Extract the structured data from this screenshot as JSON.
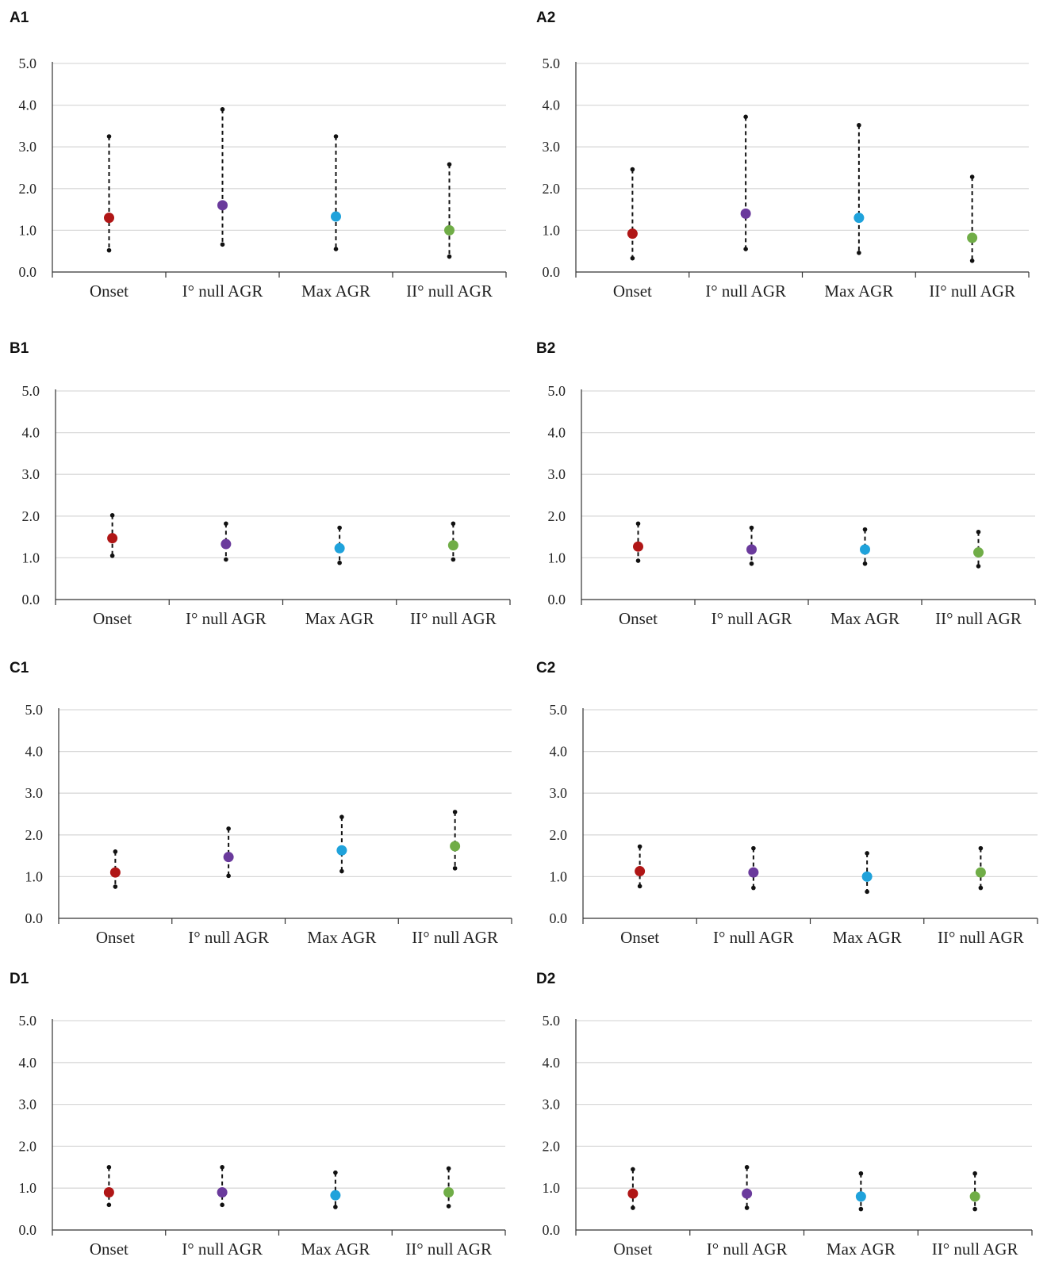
{
  "chart_data": [
    {
      "type": "scatter",
      "panel": "A1",
      "title": "",
      "xlabel": "",
      "ylabel": "",
      "ylim": [
        0,
        5
      ],
      "yticks": [
        "0.0",
        "1.0",
        "2.0",
        "3.0",
        "4.0",
        "5.0"
      ],
      "categories": [
        "Onset",
        "I° null AGR",
        "Max AGR",
        "II° null AGR"
      ],
      "colors": [
        "#b01616",
        "#6a3a9c",
        "#1fa2db",
        "#70ad47"
      ],
      "values": [
        1.3,
        1.6,
        1.33,
        1.0
      ],
      "lower": [
        0.52,
        0.66,
        0.55,
        0.37
      ],
      "upper": [
        3.25,
        3.9,
        3.25,
        2.58
      ]
    },
    {
      "type": "scatter",
      "panel": "A2",
      "title": "",
      "xlabel": "",
      "ylabel": "",
      "ylim": [
        0,
        5
      ],
      "yticks": [
        "0.0",
        "1.0",
        "2.0",
        "3.0",
        "4.0",
        "5.0"
      ],
      "categories": [
        "Onset",
        "I° null AGR",
        "Max AGR",
        "II° null AGR"
      ],
      "colors": [
        "#b01616",
        "#6a3a9c",
        "#1fa2db",
        "#70ad47"
      ],
      "values": [
        0.92,
        1.4,
        1.3,
        0.82
      ],
      "lower": [
        0.33,
        0.55,
        0.46,
        0.27
      ],
      "upper": [
        2.46,
        3.72,
        3.52,
        2.28
      ]
    },
    {
      "type": "scatter",
      "panel": "B1",
      "title": "",
      "xlabel": "",
      "ylabel": "",
      "ylim": [
        0,
        5
      ],
      "yticks": [
        "0.0",
        "1.0",
        "2.0",
        "3.0",
        "4.0",
        "5.0"
      ],
      "categories": [
        "Onset",
        "I° null AGR",
        "Max AGR",
        "II° null AGR"
      ],
      "colors": [
        "#b01616",
        "#6a3a9c",
        "#1fa2db",
        "#70ad47"
      ],
      "values": [
        1.47,
        1.33,
        1.23,
        1.3
      ],
      "lower": [
        1.05,
        0.96,
        0.88,
        0.96
      ],
      "upper": [
        2.02,
        1.82,
        1.72,
        1.82
      ]
    },
    {
      "type": "scatter",
      "panel": "B2",
      "title": "",
      "xlabel": "",
      "ylabel": "",
      "ylim": [
        0,
        5
      ],
      "yticks": [
        "0.0",
        "1.0",
        "2.0",
        "3.0",
        "4.0",
        "5.0"
      ],
      "categories": [
        "Onset",
        "I° null AGR",
        "Max AGR",
        "II° null AGR"
      ],
      "colors": [
        "#b01616",
        "#6a3a9c",
        "#1fa2db",
        "#70ad47"
      ],
      "values": [
        1.27,
        1.2,
        1.2,
        1.13
      ],
      "lower": [
        0.93,
        0.86,
        0.86,
        0.8
      ],
      "upper": [
        1.82,
        1.72,
        1.68,
        1.62
      ]
    },
    {
      "type": "scatter",
      "panel": "C1",
      "title": "",
      "xlabel": "",
      "ylabel": "",
      "ylim": [
        0,
        5
      ],
      "yticks": [
        "0.0",
        "1.0",
        "2.0",
        "3.0",
        "4.0",
        "5.0"
      ],
      "categories": [
        "Onset",
        "I° null AGR",
        "Max AGR",
        "II° null AGR"
      ],
      "colors": [
        "#b01616",
        "#6a3a9c",
        "#1fa2db",
        "#70ad47"
      ],
      "values": [
        1.1,
        1.47,
        1.63,
        1.73
      ],
      "lower": [
        0.76,
        1.02,
        1.13,
        1.2
      ],
      "upper": [
        1.6,
        2.15,
        2.43,
        2.55
      ]
    },
    {
      "type": "scatter",
      "panel": "C2",
      "title": "",
      "xlabel": "",
      "ylabel": "",
      "ylim": [
        0,
        5
      ],
      "yticks": [
        "0.0",
        "1.0",
        "2.0",
        "3.0",
        "4.0",
        "5.0"
      ],
      "categories": [
        "Onset",
        "I° null AGR",
        "Max AGR",
        "II° null AGR"
      ],
      "colors": [
        "#b01616",
        "#6a3a9c",
        "#1fa2db",
        "#70ad47"
      ],
      "values": [
        1.13,
        1.1,
        1.0,
        1.1
      ],
      "lower": [
        0.77,
        0.73,
        0.64,
        0.73
      ],
      "upper": [
        1.72,
        1.68,
        1.56,
        1.68
      ]
    },
    {
      "type": "scatter",
      "panel": "D1",
      "title": "",
      "xlabel": "",
      "ylabel": "",
      "ylim": [
        0,
        5
      ],
      "yticks": [
        "0.0",
        "1.0",
        "2.0",
        "3.0",
        "4.0",
        "5.0"
      ],
      "categories": [
        "Onset",
        "I° null AGR",
        "Max AGR",
        "II° null AGR"
      ],
      "colors": [
        "#b01616",
        "#6a3a9c",
        "#1fa2db",
        "#70ad47"
      ],
      "values": [
        0.9,
        0.9,
        0.83,
        0.9
      ],
      "lower": [
        0.6,
        0.6,
        0.55,
        0.57
      ],
      "upper": [
        1.5,
        1.5,
        1.37,
        1.47
      ]
    },
    {
      "type": "scatter",
      "panel": "D2",
      "title": "",
      "xlabel": "",
      "ylabel": "",
      "ylim": [
        0,
        5
      ],
      "yticks": [
        "0.0",
        "1.0",
        "2.0",
        "3.0",
        "4.0",
        "5.0"
      ],
      "categories": [
        "Onset",
        "I° null AGR",
        "Max AGR",
        "II° null AGR"
      ],
      "colors": [
        "#b01616",
        "#6a3a9c",
        "#1fa2db",
        "#70ad47"
      ],
      "values": [
        0.87,
        0.87,
        0.8,
        0.8
      ],
      "lower": [
        0.53,
        0.53,
        0.5,
        0.5
      ],
      "upper": [
        1.45,
        1.5,
        1.35,
        1.35
      ]
    }
  ]
}
